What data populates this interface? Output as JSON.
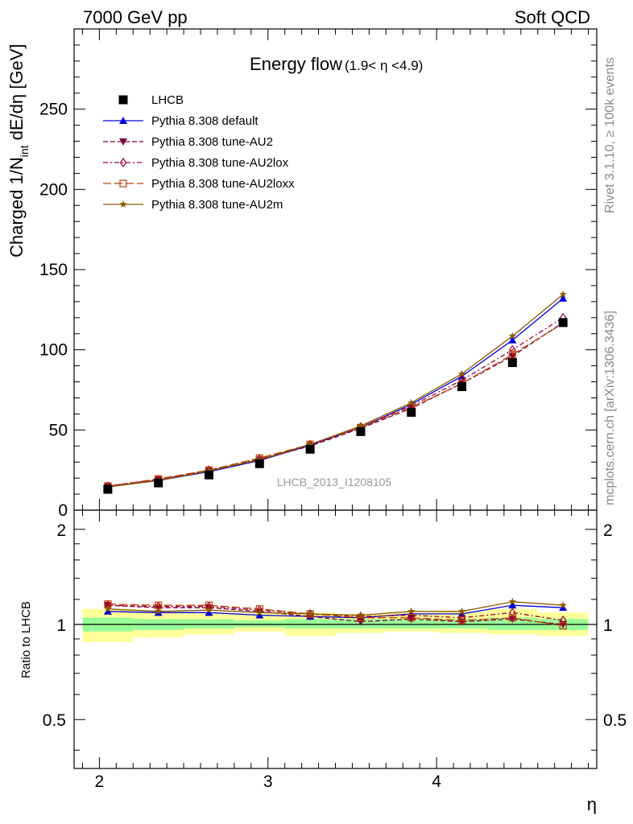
{
  "header": {
    "left": "7000 GeV pp",
    "right": "Soft QCD"
  },
  "side_labels": {
    "rivet": "Rivet 3.1.10, ≥ 100k events",
    "mcplots": "mcplots.cern.ch [arXiv:1306.3436]"
  },
  "watermark": "LHCB_2013_I1208105",
  "chart_data": [
    {
      "type": "line",
      "panel": "main",
      "title": "Energy flow",
      "title_suffix": "(1.9< η <4.9)",
      "ylabel": "Charged 1/N_int dE/dη [GeV]",
      "ylabel_parts": {
        "main": "Charged 1/N",
        "sub": "int",
        "rest": " dE/dη [GeV]"
      },
      "xlabel": "η",
      "xlim": [
        1.85,
        4.95
      ],
      "ylim": [
        0,
        300
      ],
      "yticks": [
        0,
        50,
        100,
        150,
        200,
        250
      ],
      "xticks": [
        2,
        3,
        4
      ],
      "grid": false,
      "legend_position": "top-left",
      "x": [
        2.05,
        2.35,
        2.65,
        2.95,
        3.25,
        3.55,
        3.85,
        4.15,
        4.45,
        4.75
      ],
      "data": {
        "name": "LHCB",
        "values": [
          13,
          17,
          22,
          29,
          38,
          49,
          61,
          77,
          92,
          117
        ],
        "bins": [
          [
            1.9,
            2.2
          ],
          [
            2.2,
            2.5
          ],
          [
            2.5,
            2.8
          ],
          [
            2.8,
            3.1
          ],
          [
            3.1,
            3.4
          ],
          [
            3.4,
            3.7
          ],
          [
            3.7,
            4.0
          ],
          [
            4.0,
            4.3
          ],
          [
            4.3,
            4.6
          ],
          [
            4.6,
            4.9
          ]
        ]
      },
      "series": [
        {
          "name": "Pythia 8.308 default",
          "color": "#0000dd",
          "marker": "triangle-up",
          "dash": "solid",
          "values": [
            14.5,
            18.5,
            24.0,
            31.0,
            40.5,
            51.5,
            66.0,
            83.5,
            106.0,
            132.0
          ]
        },
        {
          "name": "Pythia 8.308 tune-AU2",
          "color": "#800040",
          "marker": "triangle-down",
          "dash": "dashed",
          "values": [
            15.0,
            19.0,
            24.5,
            31.5,
            40.0,
            51.0,
            63.5,
            79.0,
            96.0,
            117.0
          ]
        },
        {
          "name": "Pythia 8.308 tune-AU2lox",
          "color": "#a00030",
          "marker": "diamond-open",
          "dash": "dashdot",
          "values": [
            15.0,
            19.0,
            25.0,
            32.0,
            41.0,
            52.0,
            65.0,
            81.0,
            100.0,
            120.0
          ]
        },
        {
          "name": "Pythia 8.308 tune-AU2loxx",
          "color": "#c04000",
          "marker": "square-open",
          "dash": "longdash",
          "values": [
            15.0,
            19.5,
            25.0,
            32.5,
            41.0,
            51.5,
            64.0,
            79.0,
            97.0,
            116.5
          ]
        },
        {
          "name": "Pythia 8.308 tune-AU2m",
          "color": "#8b5a00",
          "marker": "star",
          "dash": "solid",
          "values": [
            14.5,
            18.5,
            24.5,
            31.5,
            41.0,
            52.5,
            67.0,
            85.0,
            108.5,
            134.5
          ]
        }
      ]
    },
    {
      "type": "line",
      "panel": "ratio",
      "ylabel": "Ratio to LHCB",
      "xlabel": "η",
      "xlim": [
        1.85,
        4.95
      ],
      "ylim": [
        0.35,
        2.3
      ],
      "yticks": [
        0.5,
        1,
        2
      ],
      "ytick_labels": [
        "0.5",
        "1",
        "2"
      ],
      "xticks": [
        2,
        3,
        4
      ],
      "xtick_labels": [
        "2",
        "3",
        "4"
      ],
      "log_scale_y": true,
      "reference_line": 1,
      "bands": {
        "yellow": {
          "color": "#ffff99",
          "lower": [
            0.88,
            0.91,
            0.93,
            0.95,
            0.92,
            0.94,
            0.95,
            0.94,
            0.93,
            0.92
          ],
          "upper": [
            1.12,
            1.1,
            1.09,
            1.08,
            1.09,
            1.08,
            1.09,
            1.1,
            1.12,
            1.09
          ]
        },
        "green": {
          "color": "#99ff99",
          "lower": [
            0.95,
            0.96,
            0.97,
            0.98,
            0.97,
            0.97,
            0.97,
            0.97,
            0.96,
            0.96
          ],
          "upper": [
            1.05,
            1.04,
            1.04,
            1.03,
            1.04,
            1.04,
            1.04,
            1.04,
            1.05,
            1.04
          ]
        }
      },
      "x": [
        2.05,
        2.35,
        2.65,
        2.95,
        3.25,
        3.55,
        3.85,
        4.15,
        4.45,
        4.75
      ],
      "series": [
        {
          "name": "Pythia 8.308 default",
          "values": [
            1.1,
            1.09,
            1.09,
            1.07,
            1.06,
            1.05,
            1.08,
            1.08,
            1.15,
            1.13
          ]
        },
        {
          "name": "Pythia 8.308 tune-AU2",
          "values": [
            1.15,
            1.13,
            1.13,
            1.1,
            1.06,
            1.02,
            1.04,
            1.02,
            1.04,
            1.0
          ]
        },
        {
          "name": "Pythia 8.308 tune-AU2lox",
          "values": [
            1.15,
            1.14,
            1.14,
            1.11,
            1.08,
            1.06,
            1.07,
            1.05,
            1.09,
            1.03
          ]
        },
        {
          "name": "Pythia 8.308 tune-AU2loxx",
          "values": [
            1.16,
            1.15,
            1.15,
            1.12,
            1.08,
            1.05,
            1.05,
            1.03,
            1.05,
            0.99
          ]
        },
        {
          "name": "Pythia 8.308 tune-AU2m",
          "values": [
            1.12,
            1.1,
            1.11,
            1.09,
            1.08,
            1.07,
            1.1,
            1.1,
            1.18,
            1.15
          ]
        }
      ]
    }
  ]
}
